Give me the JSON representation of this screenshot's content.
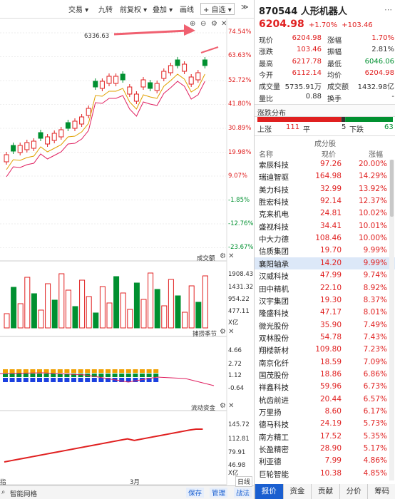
{
  "toolbar": {
    "trade": "交易 ▾",
    "nine": "九转",
    "fq": "前复权 ▾",
    "overlay": "叠加 ▾",
    "draw": "画线",
    "fav": "+ 自选 ▾",
    "more": "≫"
  },
  "chart": {
    "max_label": "6336.63",
    "price_axis": [
      "74.54%",
      "63.63%",
      "52.72%",
      "41.80%",
      "30.89%",
      "19.98%",
      "9.07%",
      "-1.85%",
      "-12.76%",
      "-23.67%"
    ],
    "vol_title": "成交额",
    "vol_axis": [
      "1908.43",
      "1431.32",
      "954.22",
      "477.11",
      "X亿"
    ],
    "ind2_title": "捕捞季节",
    "ind2_axis": [
      "4.66",
      "2.72",
      "1.12",
      "-0.64"
    ],
    "ind3_title": "流动资金",
    "ind3_axis": [
      "145.72",
      "112.81",
      "79.91",
      "46.98",
      "X亿"
    ],
    "month_label": "3月",
    "bottom_left": "指",
    "bottom_left2": "智能网格",
    "btn_save": "保存",
    "btn_manage": "管理",
    "btn_war": "战法",
    "right_btn": "日线"
  },
  "stock": {
    "code": "870544",
    "name": "人形机器人",
    "price": "6204.98",
    "change_pct": "+1.70%",
    "change": "+103.46"
  },
  "quote": [
    {
      "l1": "现价",
      "v1": "6204.98",
      "c1": "red",
      "l2": "涨幅",
      "v2": "1.70%",
      "c2": "red"
    },
    {
      "l1": "涨跌",
      "v1": "103.46",
      "c1": "red",
      "l2": "振幅",
      "v2": "2.81%",
      "c2": ""
    },
    {
      "l1": "最高",
      "v1": "6217.78",
      "c1": "red",
      "l2": "最低",
      "v2": "6046.06",
      "c2": "green"
    },
    {
      "l1": "今开",
      "v1": "6112.14",
      "c1": "red",
      "l2": "均价",
      "v2": "6204.98",
      "c2": "red"
    },
    {
      "l1": "成交量",
      "v1": "5735.91万",
      "c1": "",
      "l2": "成交额",
      "v2": "1432.98亿",
      "c2": ""
    },
    {
      "l1": "量比",
      "v1": "0.88",
      "c1": "",
      "l2": "换手",
      "v2": "-",
      "c2": ""
    }
  ],
  "dist": {
    "title": "涨跌分布",
    "up_label": "上涨",
    "up": "111",
    "flat_label": "平",
    "flat": "5",
    "down_label": "下跌",
    "down": "63",
    "up_count": 111,
    "flat_count": 5,
    "down_count": 63
  },
  "list": {
    "title": "成分股",
    "headers": [
      "名称",
      "现价",
      "涨幅"
    ],
    "rows": [
      {
        "name": "索辰科技",
        "price": "97.26",
        "pct": "20.00%"
      },
      {
        "name": "瑞迪智驱",
        "price": "164.98",
        "pct": "14.29%"
      },
      {
        "name": "美力科技",
        "price": "32.99",
        "pct": "13.92%"
      },
      {
        "name": "胜宏科技",
        "price": "92.14",
        "pct": "12.37%"
      },
      {
        "name": "克来机电",
        "price": "24.81",
        "pct": "10.02%"
      },
      {
        "name": "盛视科技",
        "price": "34.41",
        "pct": "10.01%"
      },
      {
        "name": "中大力德",
        "price": "108.46",
        "pct": "10.00%"
      },
      {
        "name": "信质集团",
        "price": "19.70",
        "pct": "9.99%"
      },
      {
        "name": "襄阳轴承",
        "price": "14.20",
        "pct": "9.99%"
      },
      {
        "name": "汉威科技",
        "price": "47.99",
        "pct": "9.74%"
      },
      {
        "name": "田中精机",
        "price": "22.10",
        "pct": "8.92%"
      },
      {
        "name": "汉宇集团",
        "price": "19.30",
        "pct": "8.37%"
      },
      {
        "name": "隆盛科技",
        "price": "47.17",
        "pct": "8.01%"
      },
      {
        "name": "微光股份",
        "price": "35.90",
        "pct": "7.49%"
      },
      {
        "name": "双林股份",
        "price": "54.78",
        "pct": "7.43%"
      },
      {
        "name": "翔楼新材",
        "price": "109.80",
        "pct": "7.23%"
      },
      {
        "name": "南京化纤",
        "price": "18.59",
        "pct": "7.09%"
      },
      {
        "name": "国茂股份",
        "price": "18.86",
        "pct": "6.86%"
      },
      {
        "name": "祥鑫科技",
        "price": "59.96",
        "pct": "6.73%"
      },
      {
        "name": "杭齿前进",
        "price": "20.44",
        "pct": "6.57%"
      },
      {
        "name": "万里扬",
        "price": "8.60",
        "pct": "6.17%"
      },
      {
        "name": "德马科技",
        "price": "24.19",
        "pct": "5.73%"
      },
      {
        "name": "南方精工",
        "price": "17.52",
        "pct": "5.35%"
      },
      {
        "name": "长盈精密",
        "price": "28.90",
        "pct": "5.17%"
      },
      {
        "name": "利亚德",
        "price": "7.99",
        "pct": "4.86%"
      },
      {
        "name": "巨轮智能",
        "price": "10.38",
        "pct": "4.85%"
      }
    ]
  },
  "bottom_tabs": [
    "报价",
    "资金",
    "贡献",
    "分价",
    "筹码"
  ],
  "colors": {
    "up": "#e02020",
    "down": "#009030",
    "accent": "#1a5fd0"
  }
}
